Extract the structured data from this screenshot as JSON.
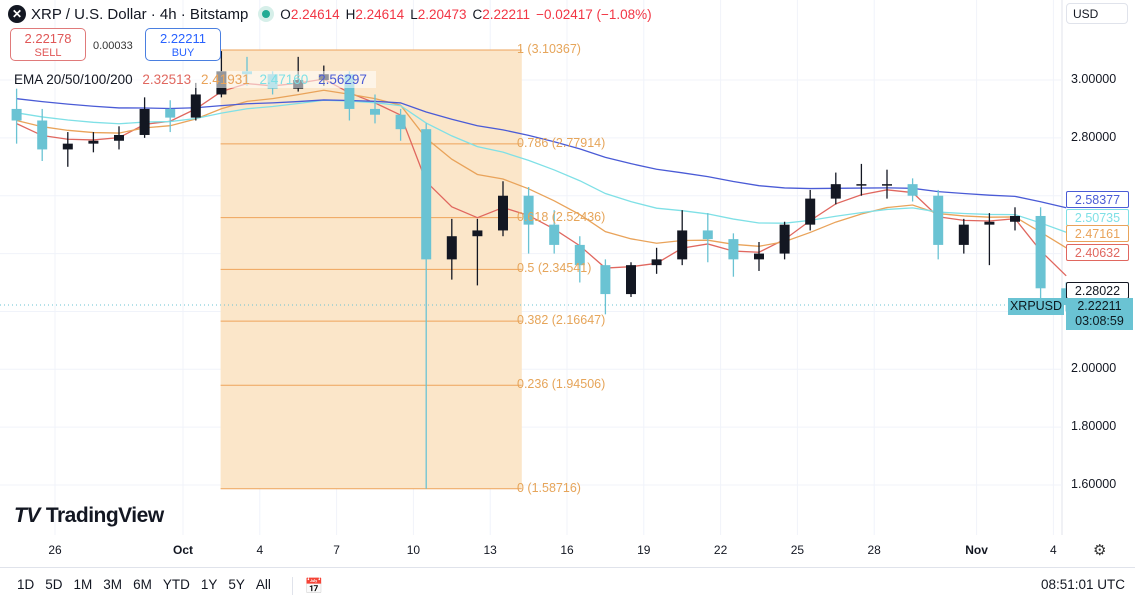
{
  "header": {
    "logo_icon": "xrp-x-icon",
    "title": "XRP / U.S. Dollar · 4h · Bitstamp",
    "market_status": "open",
    "open_label": "O",
    "open": "2.24614",
    "high_label": "H",
    "high": "2.24614",
    "low_label": "L",
    "low": "2.20473",
    "close_label": "C",
    "close": "2.22211",
    "change": "−0.02417 (−1.08%)"
  },
  "trade": {
    "sell_price": "2.22178",
    "sell_label": "SELL",
    "spread": "0.00033",
    "buy_price": "2.22211",
    "buy_label": "BUY"
  },
  "ema_legend": {
    "label": "EMA 20/50/100/200",
    "values": [
      "2.32513",
      "2.41931",
      "2.47160",
      "2.56297"
    ]
  },
  "currency": "USD",
  "price_axis": {
    "ticks": [
      "3.00000",
      "2.80000",
      "2.00000",
      "1.80000",
      "1.60000"
    ],
    "ema_labels": [
      {
        "value": "2.58377",
        "color": "#4a5bd6"
      },
      {
        "value": "2.50735",
        "color": "#7fe0e6"
      },
      {
        "value": "2.47161",
        "color": "#e9a35a"
      },
      {
        "value": "2.40632",
        "color": "#e0675f"
      }
    ],
    "prev_close": "2.28022",
    "symbol": "XRPUSD",
    "last_price": "2.22211",
    "countdown": "03:08:59"
  },
  "time_axis": [
    {
      "day": 2,
      "label": "26",
      "bold": false
    },
    {
      "day": 7,
      "label": "Oct",
      "bold": true
    },
    {
      "day": 10,
      "label": "4",
      "bold": false
    },
    {
      "day": 13,
      "label": "7",
      "bold": false
    },
    {
      "day": 16,
      "label": "10",
      "bold": false
    },
    {
      "day": 19,
      "label": "13",
      "bold": false
    },
    {
      "day": 22,
      "label": "16",
      "bold": false
    },
    {
      "day": 25,
      "label": "19",
      "bold": false
    },
    {
      "day": 28,
      "label": "22",
      "bold": false
    },
    {
      "day": 31,
      "label": "25",
      "bold": false
    },
    {
      "day": 34,
      "label": "28",
      "bold": false
    },
    {
      "day": 38,
      "label": "Nov",
      "bold": true
    },
    {
      "day": 41,
      "label": "4",
      "bold": false
    }
  ],
  "brand": "TradingView",
  "bottom_bar": {
    "ranges": [
      "1D",
      "5D",
      "1M",
      "3M",
      "6M",
      "YTD",
      "1Y",
      "5Y",
      "All"
    ],
    "goto_icon": "calendar-goto-icon",
    "clock": "08:51:01 UTC",
    "settings_icon": "gear-icon"
  },
  "colors": {
    "up": "#131722",
    "down": "#6ac3d3",
    "ema20": "#e0675f",
    "ema50": "#e9a35a",
    "ema100": "#7fe0e6",
    "ema200": "#4a5bd6",
    "fib_fill": "#fbe6c9",
    "fib_line": "#eea35a"
  },
  "chart_data": {
    "type": "candlestick",
    "symbol": "XRPUSD",
    "ylim": [
      1.5,
      3.15
    ],
    "grid": true,
    "columns": [
      "date",
      "open",
      "high",
      "low",
      "close"
    ],
    "candles": [
      [
        "Sep 24",
        2.9,
        2.97,
        2.78,
        2.86
      ],
      [
        "Sep 25",
        2.86,
        2.9,
        2.72,
        2.76
      ],
      [
        "Sep 26",
        2.76,
        2.82,
        2.7,
        2.78
      ],
      [
        "Sep 27",
        2.78,
        2.82,
        2.75,
        2.79
      ],
      [
        "Sep 28",
        2.79,
        2.84,
        2.76,
        2.81
      ],
      [
        "Sep 29",
        2.81,
        2.94,
        2.8,
        2.9
      ],
      [
        "Sep 30",
        2.9,
        2.93,
        2.82,
        2.87
      ],
      [
        "Oct 1",
        2.87,
        2.99,
        2.86,
        2.95
      ],
      [
        "Oct 2",
        2.95,
        3.1,
        2.94,
        3.03
      ],
      [
        "Oct 3",
        3.03,
        3.08,
        2.98,
        3.02
      ],
      [
        "Oct 4",
        3.02,
        3.03,
        2.95,
        2.97
      ],
      [
        "Oct 5",
        2.97,
        3.08,
        2.96,
        3.0
      ],
      [
        "Oct 6",
        3.0,
        3.05,
        2.98,
        3.02
      ],
      [
        "Oct 7",
        3.02,
        3.03,
        2.86,
        2.9
      ],
      [
        "Oct 8",
        2.9,
        2.95,
        2.85,
        2.88
      ],
      [
        "Oct 9",
        2.88,
        2.9,
        2.79,
        2.83
      ],
      [
        "Oct 10",
        2.83,
        2.85,
        1.587,
        2.38
      ],
      [
        "Oct 11",
        2.38,
        2.52,
        2.31,
        2.46
      ],
      [
        "Oct 12",
        2.46,
        2.52,
        2.29,
        2.48
      ],
      [
        "Oct 13",
        2.48,
        2.65,
        2.46,
        2.6
      ],
      [
        "Oct 14",
        2.6,
        2.63,
        2.4,
        2.5
      ],
      [
        "Oct 15",
        2.5,
        2.55,
        2.4,
        2.43
      ],
      [
        "Oct 16",
        2.43,
        2.46,
        2.3,
        2.36
      ],
      [
        "Oct 17",
        2.36,
        2.38,
        2.19,
        2.26
      ],
      [
        "Oct 18",
        2.26,
        2.37,
        2.25,
        2.36
      ],
      [
        "Oct 19",
        2.36,
        2.42,
        2.33,
        2.38
      ],
      [
        "Oct 20",
        2.38,
        2.55,
        2.36,
        2.48
      ],
      [
        "Oct 21",
        2.48,
        2.54,
        2.37,
        2.45
      ],
      [
        "Oct 22",
        2.45,
        2.47,
        2.32,
        2.38
      ],
      [
        "Oct 23",
        2.38,
        2.44,
        2.34,
        2.4
      ],
      [
        "Oct 24",
        2.4,
        2.51,
        2.38,
        2.5
      ],
      [
        "Oct 25",
        2.5,
        2.62,
        2.48,
        2.59
      ],
      [
        "Oct 26",
        2.59,
        2.68,
        2.57,
        2.64
      ],
      [
        "Oct 27",
        2.64,
        2.71,
        2.6,
        2.64
      ],
      [
        "Oct 28",
        2.64,
        2.69,
        2.59,
        2.64
      ],
      [
        "Oct 29",
        2.64,
        2.66,
        2.58,
        2.6
      ],
      [
        "Oct 30",
        2.6,
        2.62,
        2.38,
        2.43
      ],
      [
        "Oct 31",
        2.43,
        2.52,
        2.4,
        2.5
      ],
      [
        "Nov 1",
        2.5,
        2.54,
        2.36,
        2.51
      ],
      [
        "Nov 2",
        2.51,
        2.56,
        2.48,
        2.53
      ],
      [
        "Nov 3",
        2.53,
        2.56,
        2.23,
        2.28
      ],
      [
        "Nov 4",
        2.28,
        2.3,
        2.2,
        2.22211
      ]
    ],
    "ema_periods": [
      20,
      50,
      100,
      200
    ],
    "fibonacci": {
      "from": "Oct 2",
      "to": "Oct 13",
      "levels": [
        {
          "ratio": "1",
          "price": 3.10367,
          "label": "1 (3.10367)"
        },
        {
          "ratio": "0.786",
          "price": 2.77914,
          "label": "0.786 (2.77914)"
        },
        {
          "ratio": "0.618",
          "price": 2.52436,
          "label": "0.618 (2.52436)"
        },
        {
          "ratio": "0.5",
          "price": 2.34541,
          "label": "0.5 (2.34541)"
        },
        {
          "ratio": "0.382",
          "price": 2.16647,
          "label": "0.382 (2.16647)"
        },
        {
          "ratio": "0.236",
          "price": 1.94506,
          "label": "0.236 (1.94506)"
        },
        {
          "ratio": "0",
          "price": 1.58716,
          "label": "0 (1.58716)"
        }
      ]
    }
  }
}
